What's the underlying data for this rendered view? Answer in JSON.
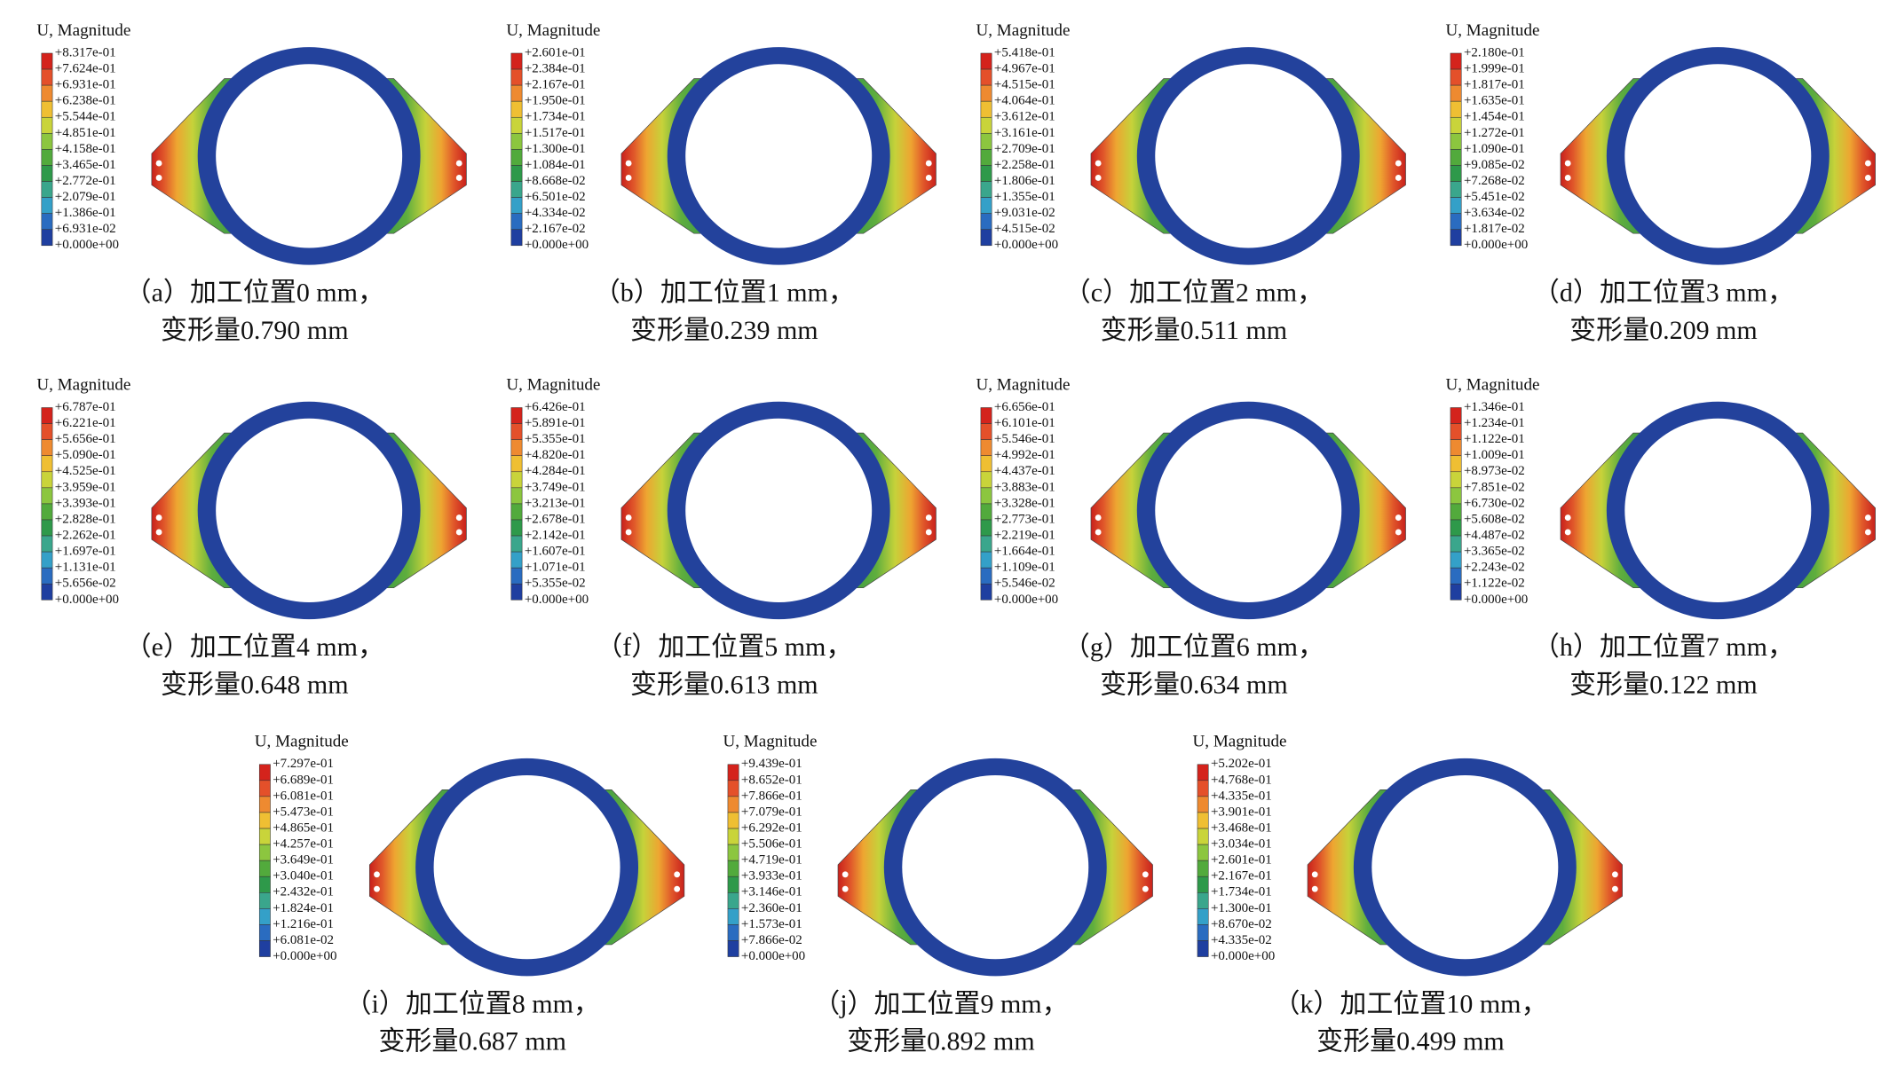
{
  "panels": [
    {
      "legend_title": "U, Magnitude",
      "legend_labels": [
        "+8.317e-01",
        "+7.624e-01",
        "+6.931e-01",
        "+6.238e-01",
        "+5.544e-01",
        "+4.851e-01",
        "+4.158e-01",
        "+3.465e-01",
        "+2.772e-01",
        "+2.079e-01",
        "+1.386e-01",
        "+6.931e-02",
        "+0.000e+00"
      ],
      "caption": [
        "（a）加工位置0 mm，",
        "变形量0.790 mm"
      ]
    },
    {
      "legend_title": "U, Magnitude",
      "legend_labels": [
        "+2.601e-01",
        "+2.384e-01",
        "+2.167e-01",
        "+1.950e-01",
        "+1.734e-01",
        "+1.517e-01",
        "+1.300e-01",
        "+1.084e-01",
        "+8.668e-02",
        "+6.501e-02",
        "+4.334e-02",
        "+2.167e-02",
        "+0.000e+00"
      ],
      "caption": [
        "（b）加工位置1 mm，",
        "变形量0.239 mm"
      ]
    },
    {
      "legend_title": "U, Magnitude",
      "legend_labels": [
        "+5.418e-01",
        "+4.967e-01",
        "+4.515e-01",
        "+4.064e-01",
        "+3.612e-01",
        "+3.161e-01",
        "+2.709e-01",
        "+2.258e-01",
        "+1.806e-01",
        "+1.355e-01",
        "+9.031e-02",
        "+4.515e-02",
        "+0.000e+00"
      ],
      "caption": [
        "（c）加工位置2 mm，",
        "变形量0.511 mm"
      ]
    },
    {
      "legend_title": "U, Magnitude",
      "legend_labels": [
        "+2.180e-01",
        "+1.999e-01",
        "+1.817e-01",
        "+1.635e-01",
        "+1.454e-01",
        "+1.272e-01",
        "+1.090e-01",
        "+9.085e-02",
        "+7.268e-02",
        "+5.451e-02",
        "+3.634e-02",
        "+1.817e-02",
        "+0.000e+00"
      ],
      "caption": [
        "（d）加工位置3 mm，",
        "变形量0.209 mm"
      ]
    },
    {
      "legend_title": "U, Magnitude",
      "legend_labels": [
        "+6.787e-01",
        "+6.221e-01",
        "+5.656e-01",
        "+5.090e-01",
        "+4.525e-01",
        "+3.959e-01",
        "+3.393e-01",
        "+2.828e-01",
        "+2.262e-01",
        "+1.697e-01",
        "+1.131e-01",
        "+5.656e-02",
        "+0.000e+00"
      ],
      "caption": [
        "（e）加工位置4 mm，",
        "变形量0.648 mm"
      ]
    },
    {
      "legend_title": "U, Magnitude",
      "legend_labels": [
        "+6.426e-01",
        "+5.891e-01",
        "+5.355e-01",
        "+4.820e-01",
        "+4.284e-01",
        "+3.749e-01",
        "+3.213e-01",
        "+2.678e-01",
        "+2.142e-01",
        "+1.607e-01",
        "+1.071e-01",
        "+5.355e-02",
        "+0.000e+00"
      ],
      "caption": [
        "（f）加工位置5 mm，",
        "变形量0.613 mm"
      ]
    },
    {
      "legend_title": "U, Magnitude",
      "legend_labels": [
        "+6.656e-01",
        "+6.101e-01",
        "+5.546e-01",
        "+4.992e-01",
        "+4.437e-01",
        "+3.883e-01",
        "+3.328e-01",
        "+2.773e-01",
        "+2.219e-01",
        "+1.664e-01",
        "+1.109e-01",
        "+5.546e-02",
        "+0.000e+00"
      ],
      "caption": [
        "（g）加工位置6 mm，",
        "变形量0.634 mm"
      ]
    },
    {
      "legend_title": "U, Magnitude",
      "legend_labels": [
        "+1.346e-01",
        "+1.234e-01",
        "+1.122e-01",
        "+1.009e-01",
        "+8.973e-02",
        "+7.851e-02",
        "+6.730e-02",
        "+5.608e-02",
        "+4.487e-02",
        "+3.365e-02",
        "+2.243e-02",
        "+1.122e-02",
        "+0.000e+00"
      ],
      "caption": [
        "（h）加工位置7 mm，",
        "变形量0.122 mm"
      ]
    },
    {
      "legend_title": "U, Magnitude",
      "legend_labels": [
        "+7.297e-01",
        "+6.689e-01",
        "+6.081e-01",
        "+5.473e-01",
        "+4.865e-01",
        "+4.257e-01",
        "+3.649e-01",
        "+3.040e-01",
        "+2.432e-01",
        "+1.824e-01",
        "+1.216e-01",
        "+6.081e-02",
        "+0.000e+00"
      ],
      "caption": [
        "（i）加工位置8 mm，",
        "变形量0.687 mm"
      ]
    },
    {
      "legend_title": "U, Magnitude",
      "legend_labels": [
        "+9.439e-01",
        "+8.652e-01",
        "+7.866e-01",
        "+7.079e-01",
        "+6.292e-01",
        "+5.506e-01",
        "+4.719e-01",
        "+3.933e-01",
        "+3.146e-01",
        "+2.360e-01",
        "+1.573e-01",
        "+7.866e-02",
        "+0.000e+00"
      ],
      "caption": [
        "（j）加工位置9 mm，",
        "变形量0.892 mm"
      ]
    },
    {
      "legend_title": "U, Magnitude",
      "legend_labels": [
        "+5.202e-01",
        "+4.768e-01",
        "+4.335e-01",
        "+3.901e-01",
        "+3.468e-01",
        "+3.034e-01",
        "+2.601e-01",
        "+2.167e-01",
        "+1.734e-01",
        "+1.300e-01",
        "+8.670e-02",
        "+4.335e-02",
        "+0.000e+00"
      ],
      "caption": [
        "（k）加工位置10 mm，",
        "变形量0.499 mm"
      ]
    }
  ]
}
